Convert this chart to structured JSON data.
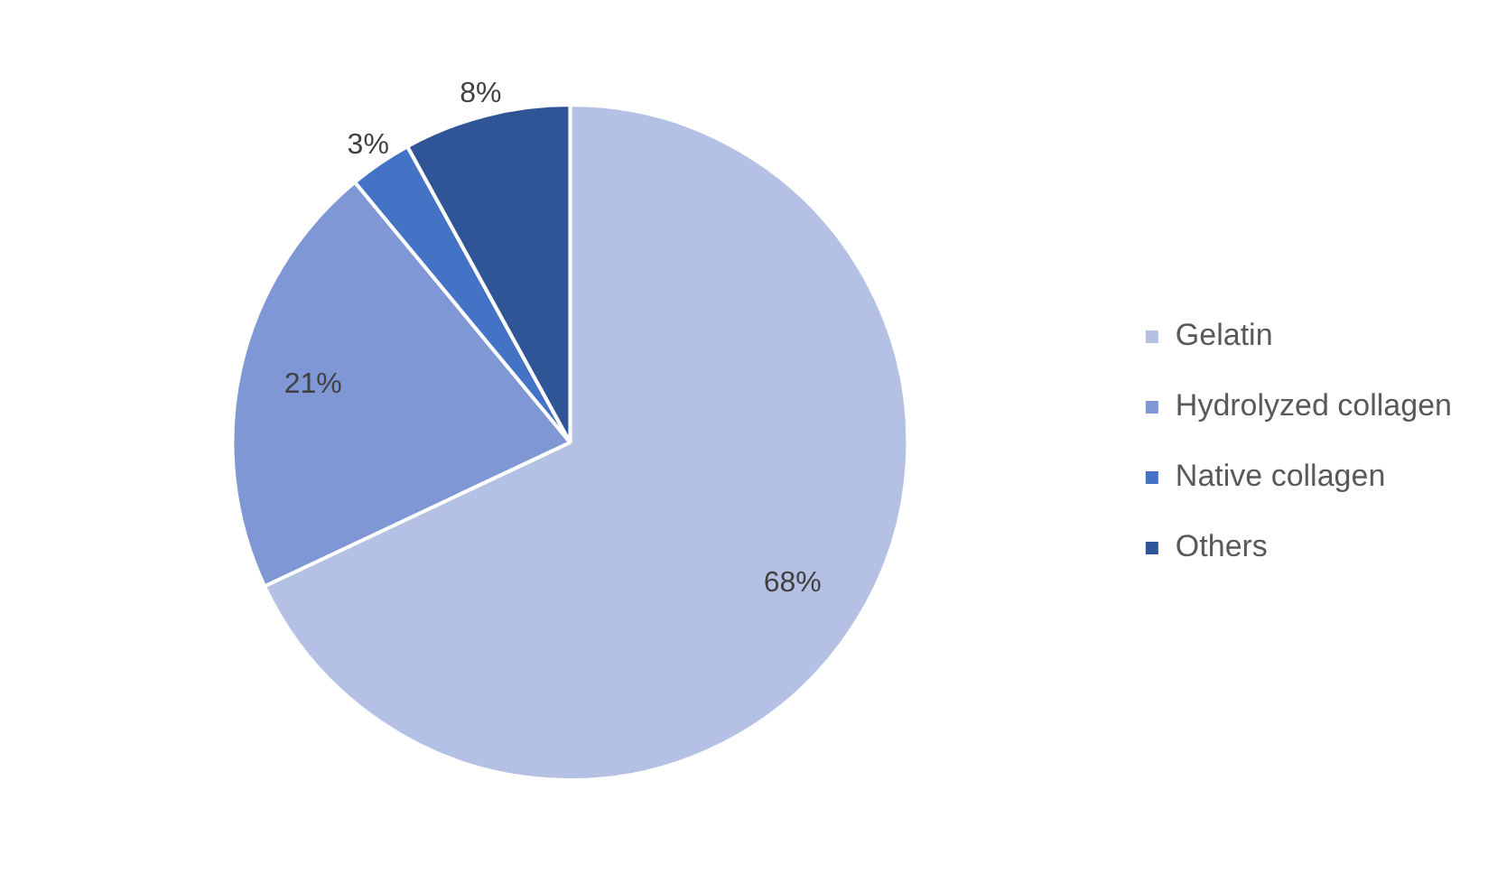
{
  "chart_data": {
    "type": "pie",
    "categories": [
      "Gelatin",
      "Hydrolyzed collagen",
      "Native collagen",
      "Others"
    ],
    "values": [
      68,
      21,
      3,
      8
    ],
    "value_labels": [
      "68%",
      "21%",
      "3%",
      "8%"
    ],
    "colors": [
      "#b4c1e4",
      "#7f97d4",
      "#4472c4",
      "#2f5597"
    ],
    "legend": "right"
  }
}
